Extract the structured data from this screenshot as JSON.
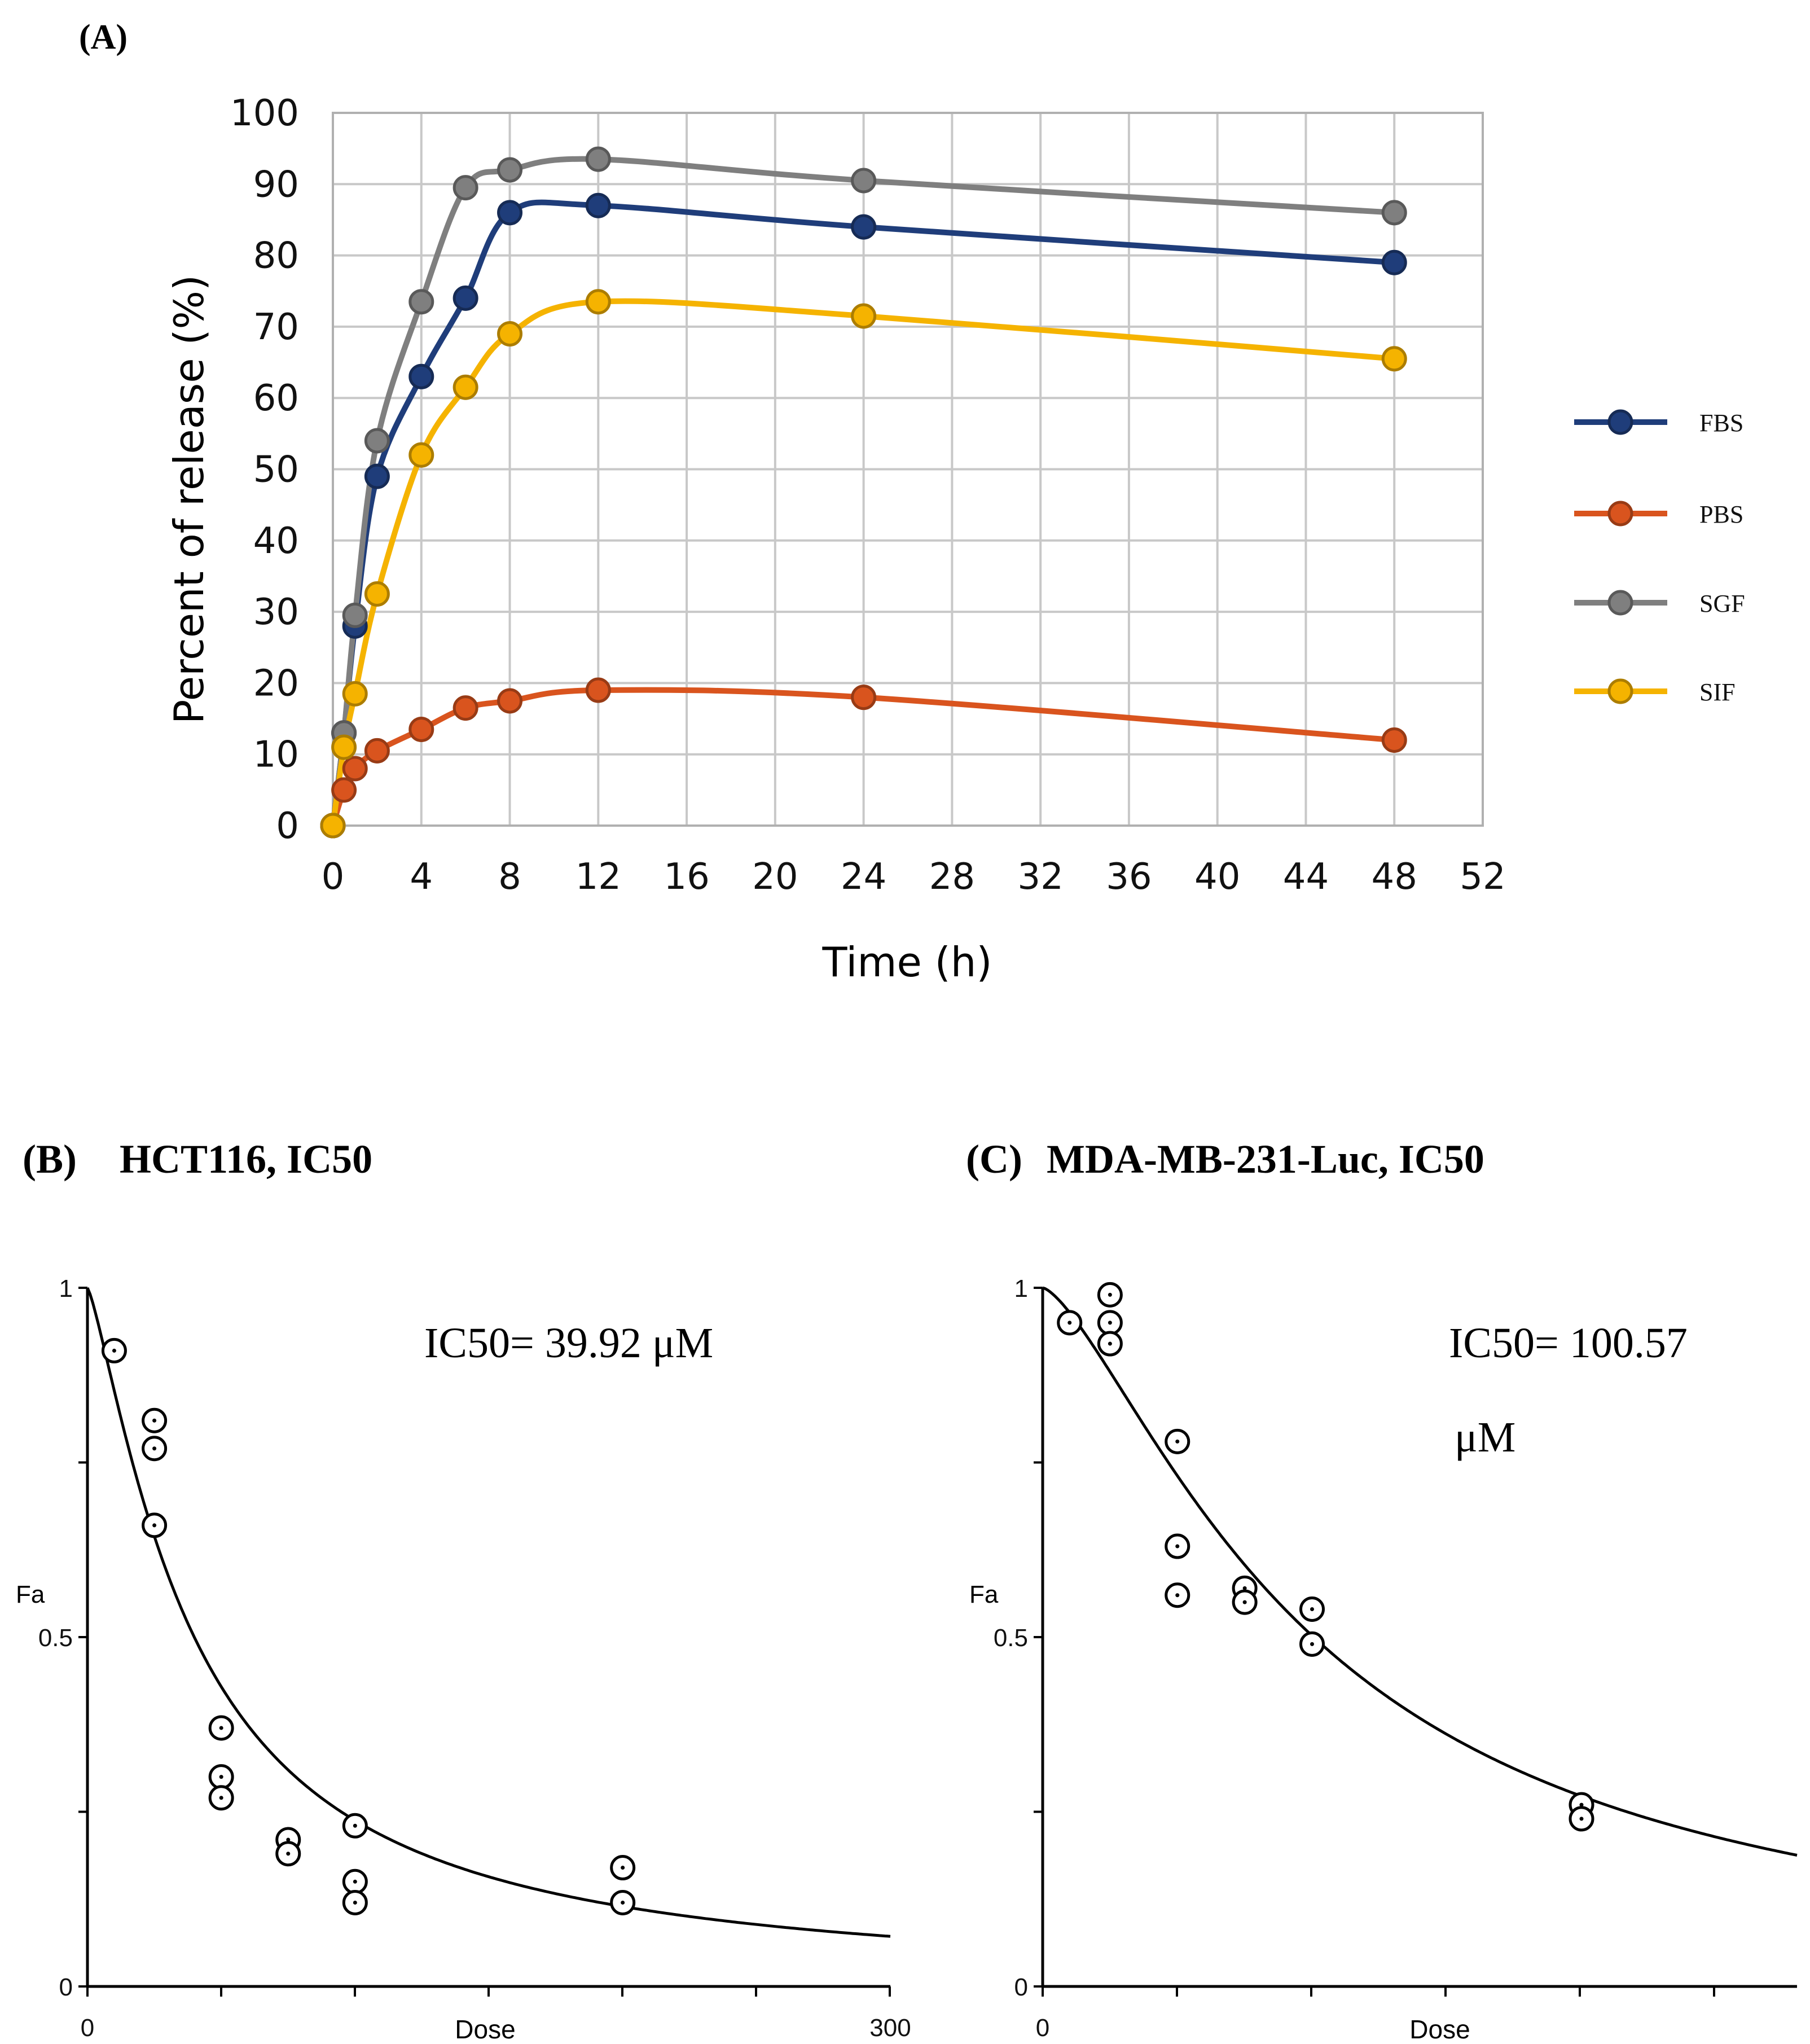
{
  "chart_data": [
    {
      "panel_label": "(A)",
      "type": "line",
      "title": "",
      "xlabel": "Time (h)",
      "ylabel": "Percent of release (%)",
      "xlim": [
        0,
        52
      ],
      "ylim": [
        0,
        100
      ],
      "x_ticks": [
        "0",
        "4",
        "8",
        "12",
        "16",
        "20",
        "24",
        "28",
        "32",
        "36",
        "40",
        "44",
        "48",
        "52"
      ],
      "y_ticks": [
        "0",
        "10",
        "20",
        "30",
        "40",
        "50",
        "60",
        "70",
        "80",
        "90",
        "100"
      ],
      "grid": true,
      "legend_position": "right",
      "x": [
        0,
        0.5,
        1,
        2,
        4,
        6,
        8,
        12,
        24,
        48
      ],
      "series": [
        {
          "name": "FBS",
          "color": "#1f3d7a",
          "values": [
            0,
            13,
            28,
            49,
            63,
            74,
            86,
            87,
            84,
            79
          ]
        },
        {
          "name": "PBS",
          "color": "#d9541e",
          "values": [
            0,
            5,
            8,
            10.5,
            13.5,
            16.5,
            17.5,
            19,
            18,
            12
          ]
        },
        {
          "name": "SGF",
          "color": "#7f7f7f",
          "values": [
            0,
            13,
            29.5,
            54,
            73.5,
            89.5,
            92,
            93.5,
            90.5,
            86
          ]
        },
        {
          "name": "SIF",
          "color": "#f5b300",
          "values": [
            0,
            11,
            18.5,
            32.5,
            52,
            61.5,
            69,
            73.5,
            71.5,
            65.5
          ]
        }
      ]
    },
    {
      "panel_label": "(B)",
      "panel_title": "HCT116, IC50",
      "type": "scatter",
      "xlabel": "Dose",
      "ylabel": "Fa",
      "xlim": [
        0,
        300
      ],
      "ylim": [
        0,
        1
      ],
      "x_tick_labels": [
        "0",
        "300"
      ],
      "y_tick_labels": [
        "0",
        "0.5",
        "1"
      ],
      "annotation": "IC50= 39.92   μM",
      "curve": {
        "model": "median-effect",
        "ic50": 39.92,
        "m": 1.27
      },
      "points": [
        {
          "x": 10,
          "y": 0.91
        },
        {
          "x": 25,
          "y": 0.81
        },
        {
          "x": 25,
          "y": 0.77
        },
        {
          "x": 25,
          "y": 0.66
        },
        {
          "x": 50,
          "y": 0.37
        },
        {
          "x": 50,
          "y": 0.3
        },
        {
          "x": 50,
          "y": 0.27
        },
        {
          "x": 75,
          "y": 0.21
        },
        {
          "x": 75,
          "y": 0.19
        },
        {
          "x": 100,
          "y": 0.23
        },
        {
          "x": 100,
          "y": 0.15
        },
        {
          "x": 100,
          "y": 0.12
        },
        {
          "x": 200,
          "y": 0.17
        },
        {
          "x": 200,
          "y": 0.12
        }
      ]
    },
    {
      "panel_label": "(C)",
      "panel_title": "MDA-MB-231-Luc, IC50",
      "type": "scatter",
      "xlabel": "Dose",
      "ylabel": "Fa",
      "xlim": [
        0,
        280
      ],
      "ylim": [
        0,
        1
      ],
      "x_tick_labels": [
        "0"
      ],
      "y_tick_labels": [
        "0",
        "0.5",
        "1"
      ],
      "annotation_line1": "IC50= 100.57",
      "annotation_line2": "μM",
      "curve": {
        "model": "median-effect",
        "ic50": 100.57,
        "m": 1.43
      },
      "points": [
        {
          "x": 10,
          "y": 0.95
        },
        {
          "x": 25,
          "y": 0.99
        },
        {
          "x": 25,
          "y": 0.95
        },
        {
          "x": 25,
          "y": 0.92
        },
        {
          "x": 50,
          "y": 0.78
        },
        {
          "x": 50,
          "y": 0.63
        },
        {
          "x": 50,
          "y": 0.56
        },
        {
          "x": 75,
          "y": 0.57
        },
        {
          "x": 75,
          "y": 0.55
        },
        {
          "x": 100,
          "y": 0.54
        },
        {
          "x": 100,
          "y": 0.49
        },
        {
          "x": 200,
          "y": 0.26
        },
        {
          "x": 200,
          "y": 0.24
        }
      ]
    }
  ]
}
